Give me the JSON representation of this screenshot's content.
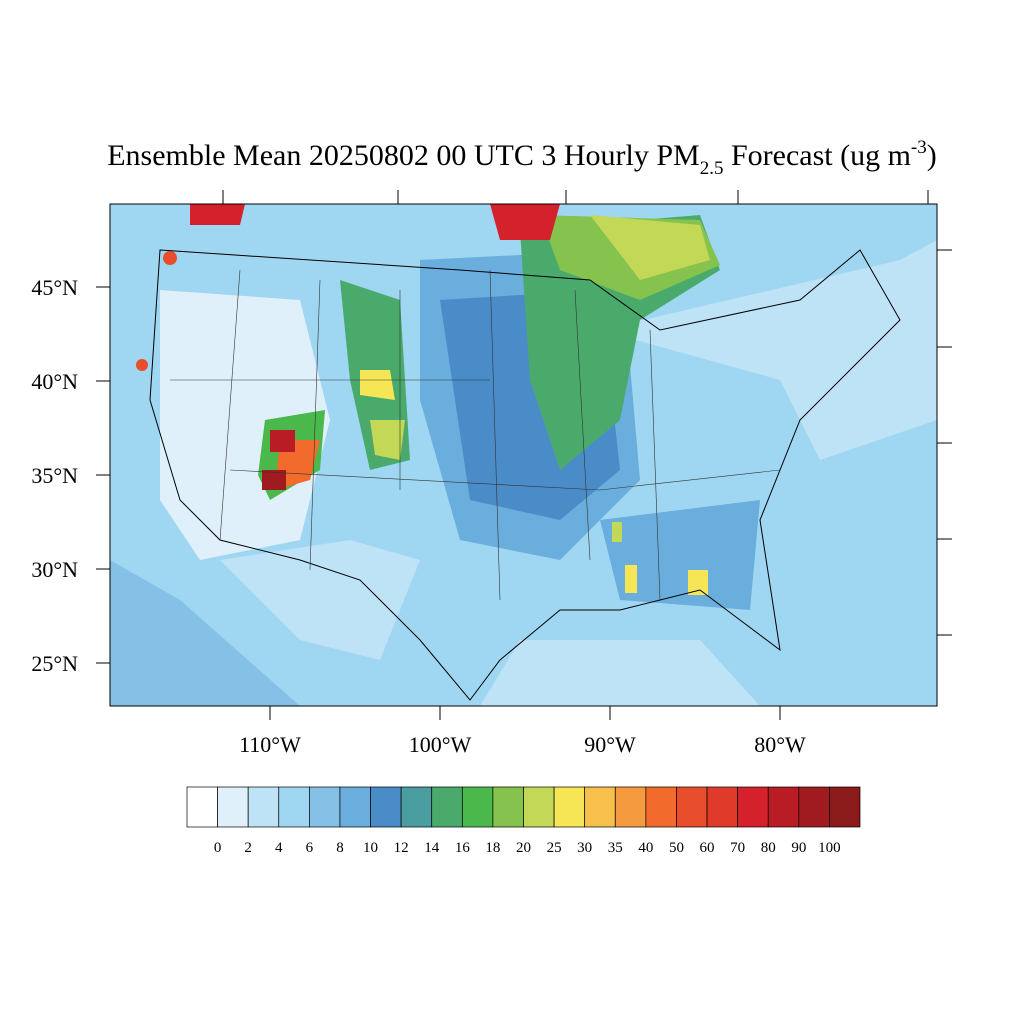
{
  "title": {
    "main": "Ensemble Mean 20250802 00 UTC 3 Hourly PM",
    "sub": "2.5",
    "after": " Forecast (ug m",
    "sup": "-3",
    "end": ")"
  },
  "lat_ticks": [
    {
      "value": 45,
      "label": "45°N"
    },
    {
      "value": 40,
      "label": "40°N"
    },
    {
      "value": 35,
      "label": "35°N"
    },
    {
      "value": 30,
      "label": "30°N"
    },
    {
      "value": 25,
      "label": "25°N"
    }
  ],
  "lon_ticks": [
    {
      "value": 110,
      "label": "110°W"
    },
    {
      "value": 100,
      "label": "100°W"
    },
    {
      "value": 90,
      "label": "90°W"
    },
    {
      "value": 80,
      "label": "80°W"
    }
  ],
  "colorbar": {
    "levels": [
      0,
      2,
      4,
      6,
      8,
      10,
      12,
      14,
      16,
      18,
      20,
      25,
      30,
      35,
      40,
      50,
      60,
      70,
      80,
      90,
      100
    ],
    "colors": [
      "#ffffff",
      "#dff0fa",
      "#bfe3f6",
      "#9fd6f2",
      "#85c0e6",
      "#6aaedd",
      "#4a8cc8",
      "#4b9ea0",
      "#4aaa6c",
      "#4ab84a",
      "#86c34e",
      "#c3d857",
      "#f6e655",
      "#f6c04a",
      "#f59a3e",
      "#f26b2c",
      "#e84e2b",
      "#e03a2a",
      "#d4212b",
      "#b91c24",
      "#a01b20",
      "#8b1a1a"
    ]
  }
}
